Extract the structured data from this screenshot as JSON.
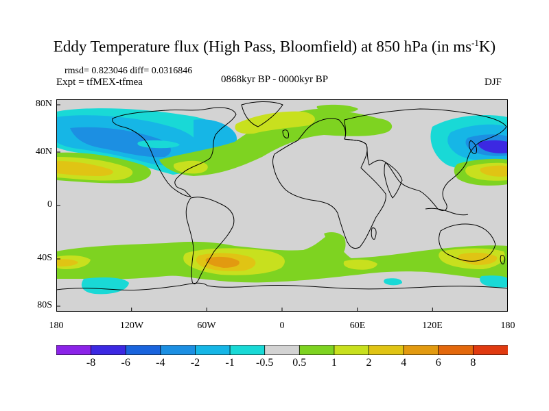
{
  "title": {
    "text": "Eddy Temperature flux (High Pass, Bloomfield) at 850 hPa (in ms",
    "superscript": "-1",
    "suffix": "K)"
  },
  "stats": "rmsd= 0.823046 diff= 0.0316846",
  "experiment": "Expt = tfMEX-tfmea",
  "period": "0868kyr BP - 0000kyr BP",
  "season": "DJF",
  "lat_labels": [
    "80N",
    "40N",
    "0",
    "40S",
    "80S"
  ],
  "lon_labels": [
    "180",
    "120W",
    "60W",
    "0",
    "60E",
    "120E",
    "180"
  ],
  "colorbar": {
    "labels": [
      "-8",
      "-6",
      "-4",
      "-2",
      "-1",
      "-0.5",
      "0.5",
      "1",
      "2",
      "4",
      "6",
      "8"
    ],
    "colors": [
      "#8b23e8",
      "#3c28e2",
      "#1a64dd",
      "#1c8fe2",
      "#16b6e6",
      "#19d9d6",
      "#d3d3d3",
      "#7ed321",
      "#c8e01e",
      "#e0c414",
      "#e29a10",
      "#e3680c",
      "#e03a10"
    ]
  },
  "map_colors": {
    "land_background": "#d3d3d3",
    "coastline": "#000000"
  }
}
